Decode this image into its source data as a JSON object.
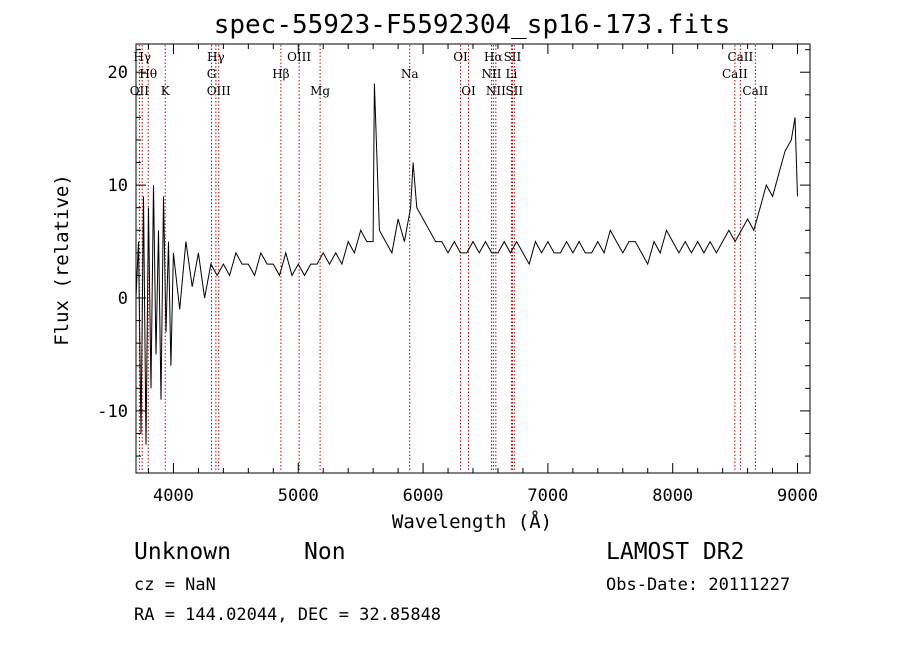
{
  "chart_data": {
    "type": "line",
    "title": "spec-55923-F5592304_sp16-173.fits",
    "xlabel": "Wavelength (Å)",
    "ylabel": "Flux (relative)",
    "xlim": [
      3700,
      9100
    ],
    "ylim": [
      -15.5,
      22.5
    ],
    "x_ticks": [
      4000,
      5000,
      6000,
      7000,
      8000,
      9000
    ],
    "y_ticks": [
      -10,
      0,
      10,
      20
    ],
    "grid": false,
    "series": [
      {
        "x": [
          3700,
          3720,
          3740,
          3760,
          3780,
          3800,
          3820,
          3840,
          3860,
          3880,
          3900,
          3920,
          3940,
          3960,
          3980,
          4000,
          4050,
          4100,
          4150,
          4200,
          4250,
          4300,
          4350,
          4400,
          4450,
          4500,
          4550,
          4600,
          4650,
          4700,
          4750,
          4800,
          4850,
          4900,
          4950,
          5000,
          5050,
          5100,
          5150,
          5200,
          5250,
          5300,
          5350,
          5400,
          5450,
          5500,
          5550,
          5600,
          5610,
          5650,
          5700,
          5750,
          5800,
          5850,
          5900,
          5920,
          5950,
          6000,
          6050,
          6100,
          6150,
          6200,
          6250,
          6300,
          6350,
          6400,
          6450,
          6500,
          6550,
          6600,
          6650,
          6700,
          6750,
          6800,
          6850,
          6900,
          6950,
          7000,
          7050,
          7100,
          7150,
          7200,
          7250,
          7300,
          7350,
          7400,
          7450,
          7500,
          7550,
          7600,
          7650,
          7700,
          7750,
          7800,
          7850,
          7900,
          7950,
          8000,
          8050,
          8100,
          8150,
          8200,
          8250,
          8300,
          8350,
          8400,
          8450,
          8500,
          8550,
          8600,
          8650,
          8700,
          8750,
          8800,
          8850,
          8900,
          8950,
          8980,
          9000
        ],
        "y": [
          0,
          5,
          -12,
          9,
          -13,
          8,
          -8,
          10,
          -5,
          6,
          -9,
          9,
          -3,
          5,
          -6,
          4,
          -1,
          5,
          1,
          4,
          0,
          3,
          2,
          3,
          2,
          4,
          3,
          3,
          2,
          4,
          3,
          3,
          2,
          4,
          2,
          3,
          2,
          3,
          3,
          4,
          3,
          4,
          3,
          5,
          4,
          6,
          5,
          5,
          19,
          6,
          5,
          4,
          7,
          5,
          8,
          12,
          8,
          7,
          6,
          5,
          5,
          4,
          5,
          4,
          4,
          5,
          4,
          5,
          4,
          4,
          5,
          4,
          5,
          4,
          3,
          5,
          4,
          5,
          4,
          4,
          5,
          4,
          5,
          4,
          4,
          5,
          4,
          6,
          5,
          4,
          5,
          5,
          4,
          3,
          5,
          4,
          6,
          5,
          4,
          5,
          4,
          5,
          4,
          5,
          4,
          5,
          6,
          5,
          6,
          7,
          6,
          8,
          10,
          9,
          11,
          13,
          14,
          16,
          9
        ]
      }
    ],
    "line_markers": [
      {
        "label": "Hγ",
        "x": 3750,
        "row": 0
      },
      {
        "label": "Hθ",
        "x": 3798,
        "row": 1
      },
      {
        "label": "OII",
        "x": 3727,
        "row": 2
      },
      {
        "label": "K",
        "x": 3934,
        "row": 2
      },
      {
        "label": "Hγ",
        "x": 4340,
        "row": 0
      },
      {
        "label": "G",
        "x": 4305,
        "row": 1
      },
      {
        "label": "OIII",
        "x": 4363,
        "row": 2
      },
      {
        "label": "OIII",
        "x": 5007,
        "row": 0
      },
      {
        "label": "Hβ",
        "x": 4861,
        "row": 1
      },
      {
        "label": "Mg",
        "x": 5175,
        "row": 2
      },
      {
        "label": "Na",
        "x": 5893,
        "row": 1
      },
      {
        "label": "OI",
        "x": 6300,
        "row": 0
      },
      {
        "label": "OI",
        "x": 6364,
        "row": 2
      },
      {
        "label": "Hα",
        "x": 6563,
        "row": 0
      },
      {
        "label": "SII",
        "x": 6716,
        "row": 0
      },
      {
        "label": "NII",
        "x": 6548,
        "row": 1
      },
      {
        "label": "Li",
        "x": 6708,
        "row": 1
      },
      {
        "label": "NII",
        "x": 6583,
        "row": 2
      },
      {
        "label": "SII",
        "x": 6731,
        "row": 2
      },
      {
        "label": "CaII",
        "x": 8542,
        "row": 0
      },
      {
        "label": "CaII",
        "x": 8498,
        "row": 1
      },
      {
        "label": "CaII",
        "x": 8662,
        "row": 2
      }
    ],
    "marker_color": "#c00000"
  },
  "info": {
    "object_class": "Unknown",
    "subclass": "Non",
    "survey": "LAMOST DR2",
    "cz": "cz = NaN",
    "obs_date": "Obs-Date: 20111227",
    "coords": "RA = 144.02044, DEC =  32.85848"
  }
}
